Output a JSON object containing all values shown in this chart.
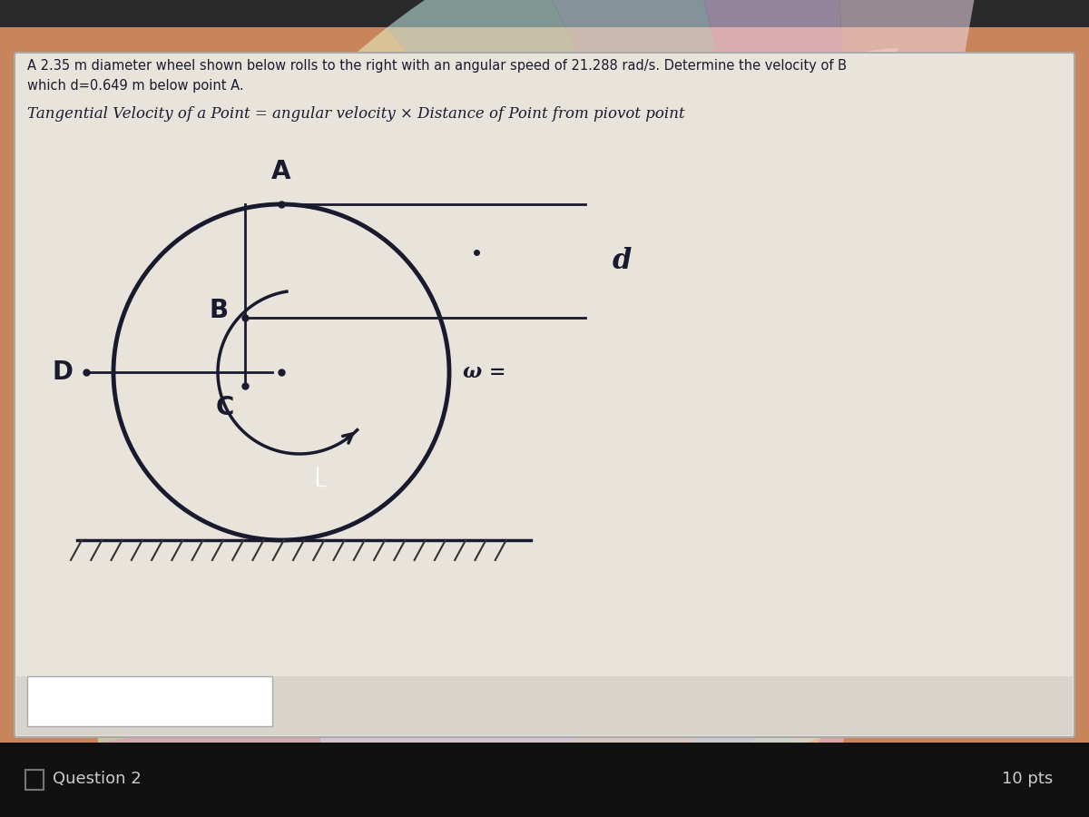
{
  "title_line1": "A 2.35 m diameter wheel shown below rolls to the right with an angular speed of 21.288 rad/s. Determine the velocity of B",
  "title_line2": "which d=0.649 m below point A.",
  "formula_text": "Tangential Velocity of a Point = angular velocity × Distance of Point from piovot point",
  "bg_color_top": "#c8855a",
  "bg_color_panel": "#d4a882",
  "panel_light": "#e8e0d4",
  "bottom_bar_color": "#1a1a1a",
  "bottom_text_color": "#555555",
  "text_color": "#1a1a2e",
  "circle_color": "#1a1a2e",
  "label_A": "A",
  "label_B": "B",
  "label_C": "C",
  "label_D": "D",
  "label_d": "d",
  "label_omega": "ω =",
  "bottom_text": "Question 2",
  "pts_text": "10 pts",
  "hatch_color": "#444444",
  "iridescent_colors": [
    "#f5c8e8",
    "#e8d5f5",
    "#c8e8f5",
    "#d5f5e8",
    "#f5f5c8",
    "#f5e8c8",
    "#e8c8f5",
    "#c8f5d5",
    "#f5d5c8"
  ],
  "iridescent_colors2": [
    "#e8b8d8",
    "#d8c8f0",
    "#b8d8f0",
    "#c8f0e0",
    "#e0f0b8",
    "#f0e0b8",
    "#e0b8f0",
    "#b8f0c8"
  ]
}
